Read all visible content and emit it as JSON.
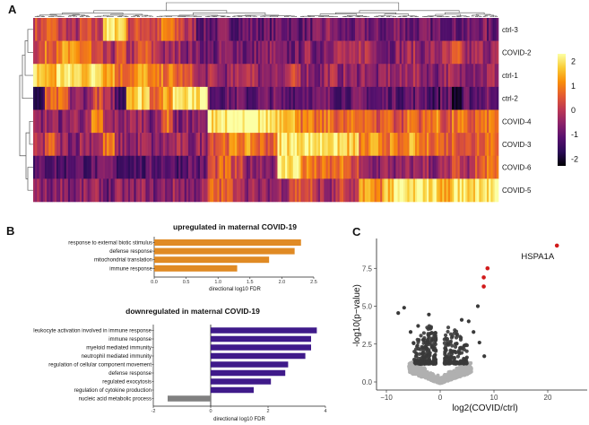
{
  "panels": {
    "a": "A",
    "b": "B",
    "c": "C"
  },
  "chart_data": [
    {
      "type": "heatmap",
      "title": "",
      "rows": [
        "ctrl-3",
        "COVID-2",
        "ctrl-1",
        "ctrl-2",
        "COVID-4",
        "COVID-3",
        "COVID-6",
        "COVID-5"
      ],
      "note": "values per gene cluster (z-score), clusters ordered left to right",
      "values": [
        [
          0.3,
          0.6,
          0.1,
          -0.3,
          0.2,
          0.1,
          1.9,
          2.0,
          0.3,
          0.5,
          0.2,
          0.9,
          0.4,
          -0.2,
          -1,
          -1,
          -0.8,
          -1,
          -0.9,
          -1,
          -1,
          -0.8,
          -1,
          -1,
          -0.9,
          -0.5,
          -1,
          -1,
          -0.8,
          -1,
          -1,
          -0.6,
          -1,
          -0.9,
          -1,
          -0.8,
          -1,
          -1,
          -0.7,
          -1
        ],
        [
          0.3,
          0.8,
          1.2,
          1.0,
          0.9,
          0,
          -0.3,
          0.3,
          -0.2,
          0.5,
          0.1,
          -0.5,
          -0.3,
          -0.6,
          -0.8,
          -1,
          -0.7,
          -0.6,
          -1,
          -0.7,
          -0.6,
          -1,
          -0.9,
          -0.5,
          -0.8,
          -0.3,
          -0.2,
          -0.5,
          0,
          -0.4,
          -0.8,
          -0.5,
          -0.3,
          -0.6,
          -0.4,
          -0.2,
          0.3,
          -0.5,
          -0.3,
          -0.4
        ],
        [
          1.8,
          1.4,
          2.0,
          1.9,
          1.8,
          2.1,
          1.6,
          0.8,
          1.0,
          1.3,
          0.7,
          0.9,
          0.6,
          0.3,
          -0.5,
          -0.3,
          -0.6,
          -0.4,
          0.2,
          -0.5,
          -0.3,
          -0.6,
          0.1,
          -0.4,
          -0.7,
          -0.2,
          -0.5,
          -0.6,
          -0.3,
          -0.8,
          -0.4,
          -0.6,
          -0.2,
          -0.5,
          -0.7,
          -0.3,
          -0.6,
          -0.4,
          -0.5,
          -0.3
        ],
        [
          -1.8,
          0.5,
          0.6,
          -0.5,
          -0.6,
          0.3,
          -0.4,
          -1.3,
          1.8,
          1.9,
          0.9,
          1.2,
          2.2,
          2.2,
          2.1,
          -0.9,
          -1,
          -0.9,
          -1.2,
          -1,
          -0.9,
          -1.1,
          -1,
          -0.8,
          -1,
          -0.9,
          -1.1,
          -1,
          -0.9,
          -1.2,
          -1,
          -1.1,
          -1,
          -0.9,
          -1.4,
          -1,
          -2,
          -1.1,
          -1,
          -0.8
        ],
        [
          -0.6,
          -0.4,
          -0.7,
          -0.3,
          -0.5,
          0.9,
          -0.4,
          -0.5,
          -0.4,
          -0.3,
          -0.7,
          0.8,
          -0.8,
          -0.6,
          -0.7,
          2.1,
          2.2,
          2.2,
          2.1,
          2.2,
          2.0,
          1.9,
          1.5,
          0.8,
          0.6,
          0.9,
          0.5,
          0.7,
          1.0,
          0.4,
          0.8,
          0.3,
          0.9,
          0.6,
          1.0,
          0.4,
          0.8,
          0.5,
          0.7,
          0.9
        ],
        [
          -0.3,
          0.5,
          -0.4,
          -0.6,
          -0.3,
          -0.2,
          0.8,
          -0.5,
          -0.6,
          -0.4,
          -0.7,
          -0.5,
          -0.3,
          -0.6,
          -0.4,
          0.6,
          0.8,
          1.0,
          1.1,
          0.7,
          0.6,
          2.0,
          2.1,
          2.2,
          2.0,
          2.1,
          1.9,
          1.6,
          0.9,
          1.2,
          1.0,
          0.6,
          1.3,
          0.8,
          0.9,
          0.6,
          0.7,
          0.4,
          0.8,
          1.0
        ],
        [
          -1.2,
          -1.1,
          -1.3,
          -1.0,
          -1.2,
          -1.1,
          -0.9,
          -1.3,
          -1.2,
          -1.4,
          -1.1,
          -1.0,
          -1.2,
          -0.9,
          -1.1,
          0.3,
          0.6,
          0.1,
          -0.6,
          -0.4,
          -0.5,
          2.0,
          2.1,
          1.0,
          0.7,
          0.6,
          0.8,
          0.3,
          -0.5,
          -0.6,
          -0.4,
          -0.7,
          -0.5,
          -0.3,
          -0.6,
          -0.4,
          0.2,
          -0.5,
          0.5,
          0.8
        ],
        [
          -0.5,
          -0.7,
          -0.4,
          -0.8,
          -0.6,
          -0.5,
          -0.9,
          -0.6,
          -0.7,
          -0.5,
          -0.8,
          -0.6,
          -0.4,
          -0.7,
          -0.5,
          0.6,
          0.5,
          0.3,
          -0.4,
          -0.6,
          -0.5,
          -0.3,
          0.5,
          0.4,
          -0.2,
          -0.5,
          0.2,
          -0.4,
          1.5,
          1.0,
          1.7,
          2.1,
          1.8,
          2.2,
          2.0,
          1.3,
          2.1,
          1.9,
          2.2,
          2.0
        ]
      ],
      "colorbar": {
        "ticks": [
          "2",
          "1",
          "0",
          "-1",
          "-2"
        ],
        "range": [
          -2.3,
          2.3
        ],
        "palette": [
          "#000004",
          "#2a0b57",
          "#57106e",
          "#8a226a",
          "#bc3754",
          "#e45a31",
          "#f98e09",
          "#f9cb35",
          "#fcffa4"
        ]
      }
    },
    {
      "type": "bar",
      "orientation": "horizontal",
      "title": "upregulated in maternal COVID-19",
      "categories": [
        "response to external biotic stimulus",
        "defense response",
        "mitochondrial translation",
        "immune response"
      ],
      "values": [
        2.3,
        2.2,
        1.8,
        1.3
      ],
      "xlabel": "directional log10 FDR",
      "xlim": [
        0,
        2.5
      ],
      "xticks": [
        "0.0",
        "0.5",
        "1.0",
        "1.5",
        "2.0",
        "2.5"
      ],
      "color": "#e08a24"
    },
    {
      "type": "bar",
      "orientation": "horizontal",
      "title": "downregulated in maternal COVID-19",
      "categories": [
        "leukocyte activation involved in immune response",
        "immune response",
        "myeloid mediated immunity",
        "neutrophil mediated immunity",
        "regulation of cellular component movement",
        "defense response",
        "regulated exocytosis",
        "regulation of cytokine production",
        "nucleic acid metabolic process"
      ],
      "values": [
        3.7,
        3.5,
        3.5,
        3.3,
        2.7,
        2.6,
        2.1,
        1.5,
        -1.5
      ],
      "xlabel": "directional log10 FDR",
      "xlim": [
        -2,
        4
      ],
      "xticks": [
        "-2",
        "0",
        "2",
        "4"
      ],
      "colors": {
        "positive": "#3f1a8a",
        "negative": "#808080"
      }
    },
    {
      "type": "scatter",
      "title": "",
      "xlabel": "log2(COVID/ctrl)",
      "ylabel": "-log10(p−value)",
      "xlim": [
        -12,
        27
      ],
      "ylim": [
        -0.3,
        9.4
      ],
      "xticks": [
        "−10",
        "0",
        "10",
        "20"
      ],
      "yticks": [
        "0.0",
        "2.5",
        "5.0",
        "7.5"
      ],
      "highlight": [
        {
          "x": 21.7,
          "y": 9.0,
          "label": "HSPA1A"
        },
        {
          "x": 8.8,
          "y": 7.5
        },
        {
          "x": 8.1,
          "y": 6.9
        },
        {
          "x": 8.1,
          "y": 6.3
        }
      ],
      "notable_points": [
        {
          "x": -7.8,
          "y": 4.55
        },
        {
          "x": -6.7,
          "y": 4.9
        },
        {
          "x": -2.1,
          "y": 4.45
        },
        {
          "x": 7.0,
          "y": 5.0
        },
        {
          "x": 4.0,
          "y": 4.1
        },
        {
          "x": 5.3,
          "y": 4.0
        },
        {
          "x": 8.2,
          "y": 1.7
        },
        {
          "x": 7.3,
          "y": 2.6
        },
        {
          "x": -4.1,
          "y": 3.7
        },
        {
          "x": -5.5,
          "y": 3.3
        },
        {
          "x": -1.8,
          "y": 3.2
        },
        {
          "x": 6.2,
          "y": 3.3
        }
      ],
      "colors": {
        "highlight": "#d11a1a",
        "significant": "#3a3a3a",
        "nonsignificant": "#b0b0b0"
      }
    }
  ]
}
